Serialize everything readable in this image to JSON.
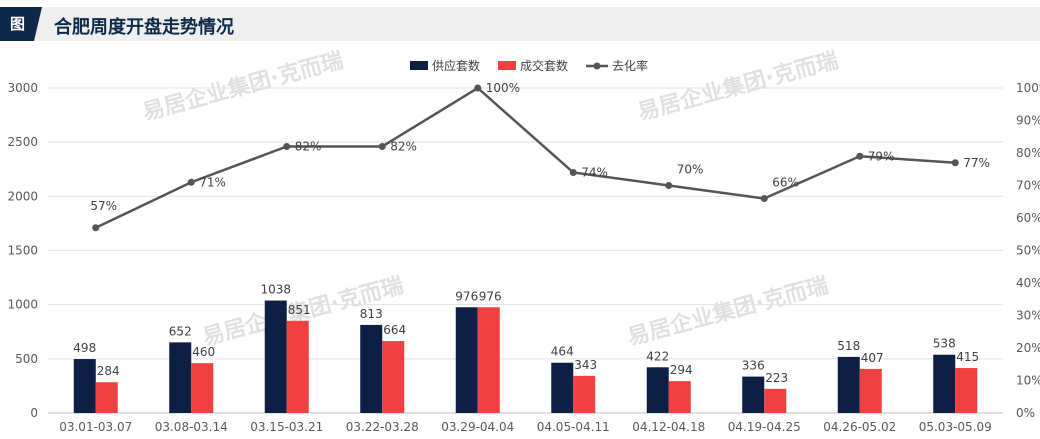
{
  "header": {
    "badge": "图",
    "title": "合肥周度开盘走势情况"
  },
  "watermark": "易居企业集团·克而瑞",
  "colors": {
    "supply": "#0d1f45",
    "deal": "#f0403f",
    "rate": "#555555",
    "header_bg": "#efefef",
    "badge": "#0e2a4a"
  },
  "chart_data": {
    "type": "bar",
    "categories": [
      "03.01-03.07",
      "03.08-03.14",
      "03.15-03.21",
      "03.22-03.28",
      "03.29-04.04",
      "04.05-04.11",
      "04.12-04.18",
      "04.19-04.25",
      "04.26-05.02",
      "05.03-05.09"
    ],
    "series": [
      {
        "name": "供应套数",
        "type": "bar",
        "axis": "left",
        "values": [
          498,
          652,
          1038,
          813,
          976,
          464,
          422,
          336,
          518,
          538
        ]
      },
      {
        "name": "成交套数",
        "type": "bar",
        "axis": "left",
        "values": [
          284,
          460,
          851,
          664,
          976,
          343,
          294,
          223,
          407,
          415
        ]
      },
      {
        "name": "去化率",
        "type": "line",
        "axis": "right",
        "values": [
          57,
          71,
          82,
          82,
          100,
          74,
          70,
          66,
          79,
          77
        ],
        "unit": "%"
      }
    ],
    "y_left": {
      "min": 0,
      "max": 3000,
      "ticks": [
        0,
        500,
        1000,
        1500,
        2000,
        2500,
        3000
      ]
    },
    "y_right": {
      "min": 0,
      "max": 100,
      "ticks": [
        0,
        10,
        20,
        30,
        40,
        50,
        60,
        70,
        80,
        90,
        100
      ],
      "unit": "%"
    },
    "legend_position": "top-center",
    "grid": true
  }
}
